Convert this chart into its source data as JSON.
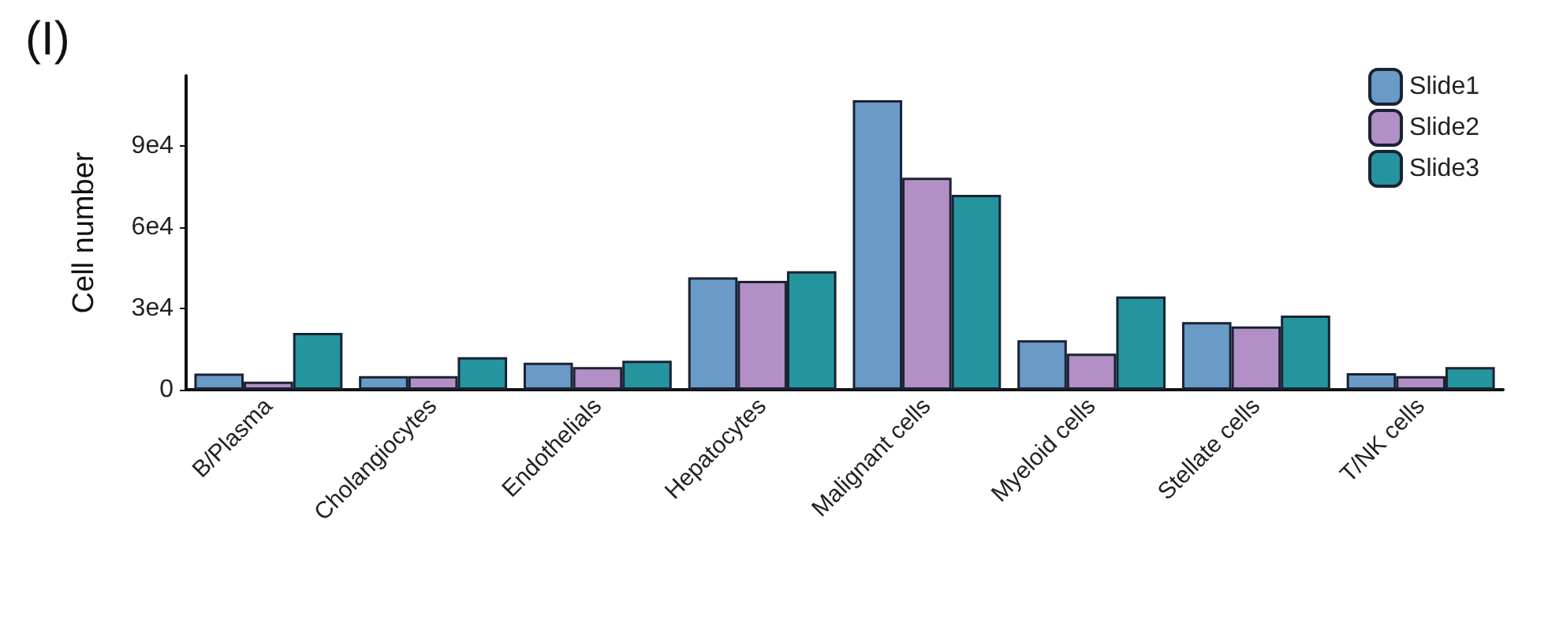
{
  "chart_data": {
    "type": "bar",
    "ylabel": "Cell number",
    "annotations": [
      "(I)"
    ],
    "categories": [
      "B/Plasma",
      "Cholangiocytes",
      "Endothelials",
      "Hepatocytes",
      "Malignant cells",
      "Myeloid cells",
      "Stellate cells",
      "T/NK cells"
    ],
    "series": [
      {
        "name": "Slide1",
        "color": "#6a9bc6",
        "values": [
          6000,
          5000,
          10000,
          41500,
          107000,
          18300,
          25000,
          6100
        ]
      },
      {
        "name": "Slide2",
        "color": "#b28fc4",
        "values": [
          3000,
          5000,
          8400,
          40200,
          78300,
          13300,
          23400,
          5000
        ]
      },
      {
        "name": "Slide3",
        "color": "#24959f",
        "values": [
          21000,
          12000,
          10700,
          43800,
          72000,
          34500,
          27400,
          8400
        ]
      }
    ],
    "ylim": [
      0,
      116000
    ],
    "yticks": [
      0,
      {
        "value": 30000,
        "label": "3e4"
      },
      {
        "value": 60000,
        "label": "6e4"
      },
      {
        "value": 90000,
        "label": "9e4"
      }
    ],
    "grid": false,
    "legend": "top right"
  }
}
